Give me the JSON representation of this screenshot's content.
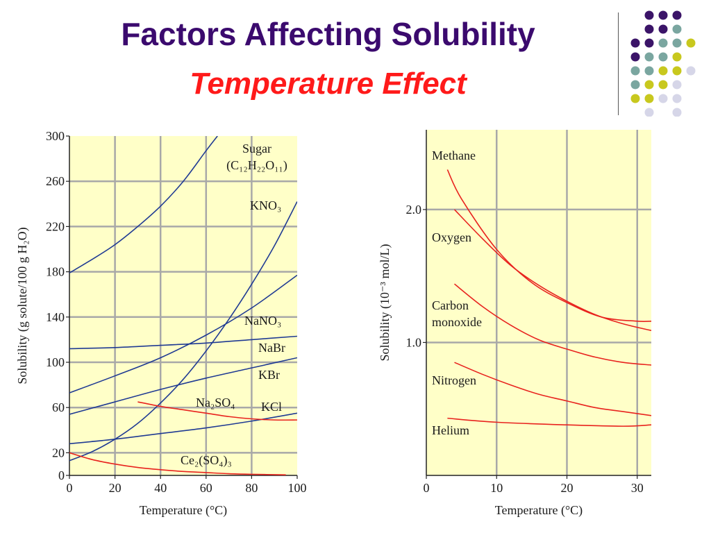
{
  "title": "Factors Affecting Solubility",
  "subtitle": "Temperature Effect",
  "decor": {
    "colors": [
      "#3b1468",
      "#7aa6a0",
      "#c8c81e",
      "#d6d6e8"
    ]
  },
  "chart_data": [
    {
      "type": "line",
      "xlabel": "Temperature (°C)",
      "ylabel": "Solubility (g solute/100 g H₂O)",
      "xlim": [
        0,
        100
      ],
      "ylim": [
        0,
        300
      ],
      "xticks": [
        "0",
        "20",
        "40",
        "60",
        "80",
        "100"
      ],
      "yticks": [
        "0",
        "20",
        "60",
        "100",
        "140",
        "180",
        "220",
        "260",
        "300"
      ],
      "grid": true,
      "background": "#ffffc8",
      "series": [
        {
          "name": "Sugar",
          "label_lines": [
            "Sugar",
            "(C₁₂H₂₂O₁₁)"
          ],
          "color": "#1f3a93",
          "x": [
            0,
            10,
            20,
            30,
            40,
            50,
            60,
            65
          ],
          "y": [
            179,
            191,
            204,
            220,
            238,
            260,
            287,
            300
          ]
        },
        {
          "name": "KNO₃",
          "label_lines": [
            "KNO₃"
          ],
          "color": "#1f3a93",
          "x": [
            0,
            10,
            20,
            30,
            40,
            50,
            60,
            70,
            80,
            90,
            100
          ],
          "y": [
            13,
            21,
            32,
            46,
            64,
            85,
            110,
            138,
            169,
            203,
            242
          ]
        },
        {
          "name": "NaNO₃",
          "label_lines": [
            "NaNO₃"
          ],
          "color": "#1f3a93",
          "x": [
            0,
            20,
            40,
            60,
            80,
            100
          ],
          "y": [
            73,
            88,
            104,
            124,
            148,
            177
          ]
        },
        {
          "name": "NaBr",
          "label_lines": [
            "NaBr"
          ],
          "color": "#1f3a93",
          "x": [
            0,
            20,
            40,
            60,
            80,
            100
          ],
          "y": [
            112,
            113,
            115,
            117,
            120,
            123
          ]
        },
        {
          "name": "KBr",
          "label_lines": [
            "KBr"
          ],
          "color": "#1f3a93",
          "x": [
            0,
            20,
            40,
            60,
            80,
            100
          ],
          "y": [
            54,
            65,
            76,
            86,
            95,
            104
          ]
        },
        {
          "name": "KCl",
          "label_lines": [
            "KCl"
          ],
          "color": "#1f3a93",
          "x": [
            0,
            20,
            40,
            60,
            80,
            100
          ],
          "y": [
            28,
            32,
            37,
            42,
            48,
            55
          ]
        },
        {
          "name": "Na₂SO₄",
          "label_lines": [
            "Na₂SO₄"
          ],
          "color": "#e8221e",
          "x": [
            30,
            40,
            50,
            60,
            70,
            80,
            90,
            100
          ],
          "y": [
            65,
            61,
            58,
            55,
            52,
            50,
            49,
            49
          ]
        },
        {
          "name": "Ce₂(SO₄)₃",
          "label_lines": [
            "Ce₂(SO₄)₃"
          ],
          "color": "#e8221e",
          "x": [
            0,
            10,
            20,
            30,
            40,
            50,
            60,
            70,
            80,
            95
          ],
          "y": [
            20,
            14,
            10,
            7,
            5,
            3.5,
            2.5,
            1.5,
            1,
            0.5
          ]
        }
      ]
    },
    {
      "type": "line",
      "xlabel": "Temperature (°C)",
      "ylabel": "Solubility (10⁻³ mol/L)",
      "xlim": [
        0,
        32
      ],
      "ylim": [
        0,
        2.6
      ],
      "xticks": [
        "0",
        "10",
        "20",
        "30"
      ],
      "yticks": [
        "1.0",
        "2.0"
      ],
      "grid": true,
      "background": "#ffffc8",
      "series": [
        {
          "name": "Methane",
          "label_lines": [
            "Methane"
          ],
          "color": "#e8221e",
          "x": [
            3,
            5,
            10,
            15,
            20,
            25,
            30,
            32
          ],
          "y": [
            2.3,
            2.08,
            1.7,
            1.45,
            1.3,
            1.19,
            1.16,
            1.16
          ]
        },
        {
          "name": "Oxygen",
          "label_lines": [
            "Oxygen"
          ],
          "color": "#e8221e",
          "x": [
            4,
            8,
            12,
            16,
            20,
            24,
            28,
            32
          ],
          "y": [
            2.0,
            1.78,
            1.58,
            1.43,
            1.31,
            1.21,
            1.14,
            1.09
          ]
        },
        {
          "name": "Carbon monoxide",
          "label_lines": [
            "Carbon",
            "monoxide"
          ],
          "color": "#e8221e",
          "x": [
            4,
            8,
            12,
            16,
            20,
            24,
            28,
            32
          ],
          "y": [
            1.44,
            1.27,
            1.13,
            1.02,
            0.95,
            0.89,
            0.85,
            0.83
          ]
        },
        {
          "name": "Nitrogen",
          "label_lines": [
            "Nitrogen"
          ],
          "color": "#e8221e",
          "x": [
            4,
            8,
            12,
            16,
            20,
            24,
            28,
            32
          ],
          "y": [
            0.85,
            0.76,
            0.68,
            0.61,
            0.56,
            0.51,
            0.48,
            0.45
          ]
        },
        {
          "name": "Helium",
          "label_lines": [
            "Helium"
          ],
          "color": "#e8221e",
          "x": [
            3,
            10,
            20,
            28,
            32
          ],
          "y": [
            0.43,
            0.4,
            0.38,
            0.37,
            0.38
          ]
        }
      ]
    }
  ]
}
